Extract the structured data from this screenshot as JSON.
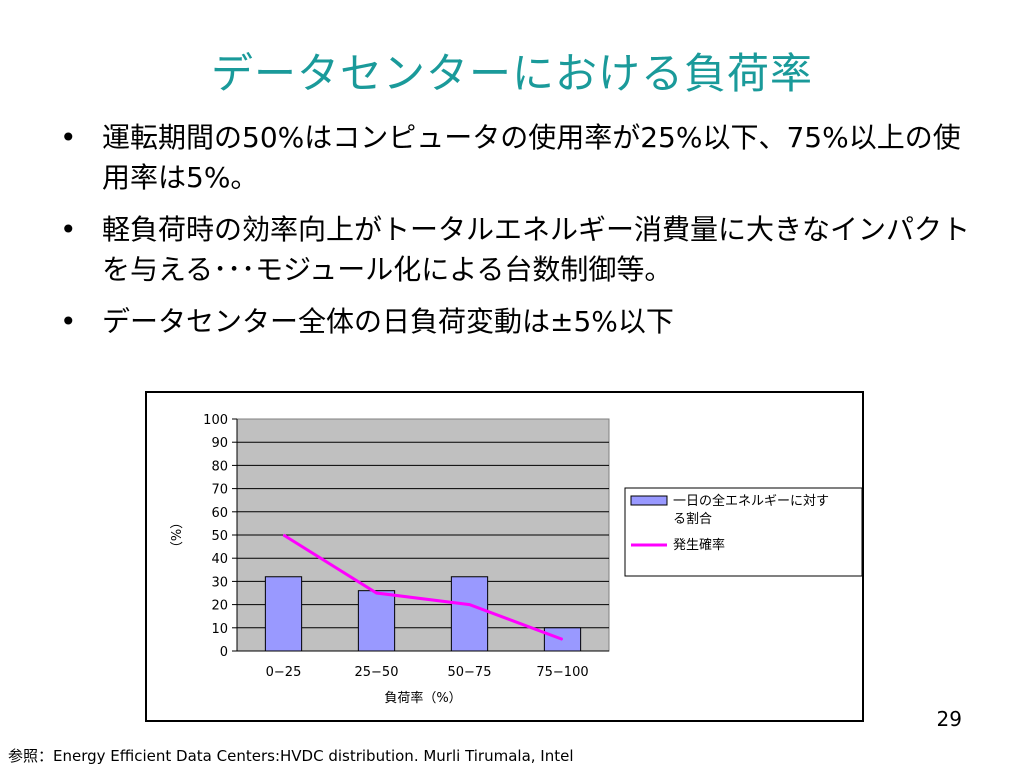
{
  "slide": {
    "title": "データセンターにおける負荷率",
    "bullets": [
      "運転期間の50%はコンピュータの使用率が25%以下、75%以上の使用率は5%。",
      "軽負荷時の効率向上がトータルエネルギー消費量に大きなインパクトを与える･･･モジュール化による台数制御等。",
      "データセンター全体の日負荷変動は±5%以下"
    ],
    "bullet_symbol": "•",
    "page_number": "29",
    "reference": "参照：Energy Efficient Data Centers:HVDC distribution. Murli Tirumala, Intel"
  },
  "chart_data": {
    "type": "bar",
    "categories": [
      "0−25",
      "25−50",
      "50−75",
      "75−100"
    ],
    "series": [
      {
        "name": "一日の全エネルギーに対する割合",
        "type": "bar",
        "values": [
          32,
          26,
          32,
          10
        ],
        "color": "#9999ff"
      },
      {
        "name": "発生確率",
        "type": "line",
        "values": [
          50,
          25,
          20,
          5
        ],
        "color": "#ff00ff"
      }
    ],
    "xlabel": "負荷率（%）",
    "ylabel": "（%）",
    "ylim": [
      0,
      100
    ],
    "yticks": [
      0,
      10,
      20,
      30,
      40,
      50,
      60,
      70,
      80,
      90,
      100
    ],
    "grid": true,
    "plot_background": "#c0c0c0",
    "legend": "right"
  }
}
